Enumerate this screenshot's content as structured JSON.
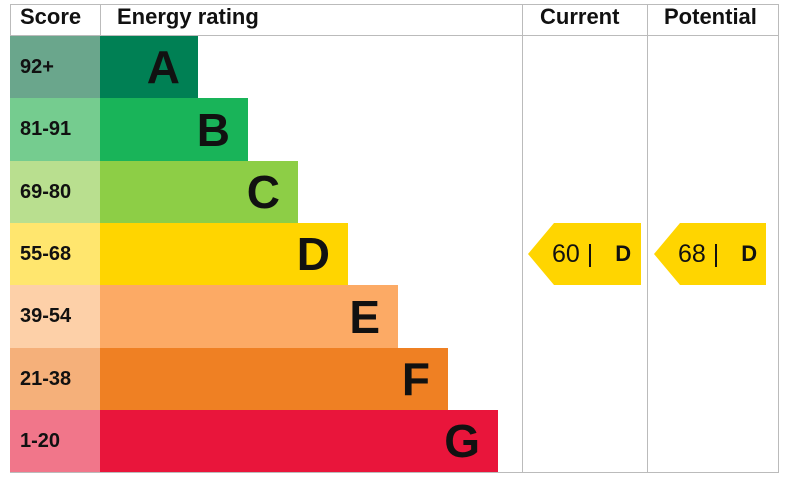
{
  "chart_data": {
    "type": "bar",
    "headers": {
      "score": "Score",
      "rating": "Energy rating",
      "current": "Current",
      "potential": "Potential"
    },
    "bands": [
      {
        "score": "92+",
        "letter": "A",
        "color": "#008054",
        "score_color": "#6aa68c"
      },
      {
        "score": "81-91",
        "letter": "B",
        "color": "#19b459",
        "score_color": "#75cc8f"
      },
      {
        "score": "69-80",
        "letter": "C",
        "color": "#8dce46",
        "score_color": "#b9df8f"
      },
      {
        "score": "55-68",
        "letter": "D",
        "color": "#ffd500",
        "score_color": "#ffe66e"
      },
      {
        "score": "39-54",
        "letter": "E",
        "color": "#fcaa65",
        "score_color": "#fdd0a8"
      },
      {
        "score": "21-38",
        "letter": "F",
        "color": "#ef8023",
        "score_color": "#f5b07a"
      },
      {
        "score": "1-20",
        "letter": "G",
        "color": "#e9153b",
        "score_color": "#f1768a"
      }
    ],
    "current": {
      "value": 60,
      "label": "60 |",
      "letter": "D",
      "color": "#ffd500"
    },
    "potential": {
      "value": 68,
      "label": "68 |",
      "letter": "D",
      "color": "#ffd500"
    }
  }
}
